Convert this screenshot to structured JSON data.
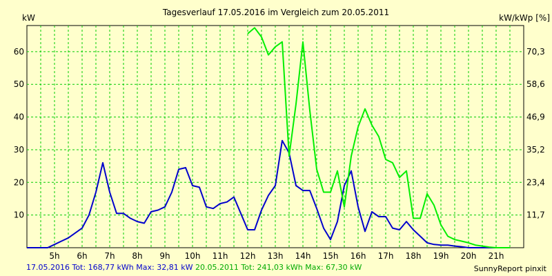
{
  "colors": {
    "background": "#ffffcc",
    "plot_background": "#ffffcc",
    "grid": "#00cc00",
    "series_2016": "#0000cc",
    "series_2011": "#00ee00"
  },
  "footer": {
    "series_2016": "17.05.2016 Tot: 168,77 kWh Max: 32,81 kW",
    "series_2011": "20.05.2011 Tot: 241,03 kWh Max: 67,30 kW",
    "brand": "SunnyReport pinxit"
  },
  "chart_data": {
    "type": "line",
    "title": "Tagesverlauf 17.05.2016 im Vergleich zum 20.05.2011",
    "ylabel": "kW",
    "ylabel_right": "kW/kWp [%]",
    "ylim": [
      0,
      68
    ],
    "yticks": [
      10,
      20,
      30,
      40,
      50,
      60
    ],
    "ylim_right": [
      0,
      79.7
    ],
    "yticks_right": [
      "11,7",
      "23,4",
      "35,2",
      "46,9",
      "58,6",
      "70,3"
    ],
    "xlim": [
      4.0,
      22.0
    ],
    "xticks": [
      {
        "x": 5,
        "label": "5h"
      },
      {
        "x": 6,
        "label": "6h"
      },
      {
        "x": 7,
        "label": "7h"
      },
      {
        "x": 8,
        "label": "8h"
      },
      {
        "x": 9,
        "label": "9h"
      },
      {
        "x": 10,
        "label": "10h"
      },
      {
        "x": 11,
        "label": "11h"
      },
      {
        "x": 12,
        "label": "12h"
      },
      {
        "x": 13,
        "label": "13h"
      },
      {
        "x": 14,
        "label": "14h"
      },
      {
        "x": 15,
        "label": "15h"
      },
      {
        "x": 16,
        "label": "16h"
      },
      {
        "x": 17,
        "label": "17h"
      },
      {
        "x": 18,
        "label": "18h"
      },
      {
        "x": 19,
        "label": "19h"
      },
      {
        "x": 20,
        "label": "20h"
      },
      {
        "x": 21,
        "label": "21h"
      }
    ],
    "grid": true,
    "series": [
      {
        "name": "17.05.2016",
        "color": "#0000cc",
        "points": [
          [
            4.0,
            0.0
          ],
          [
            4.5,
            0.0
          ],
          [
            4.75,
            0.0
          ],
          [
            5.0,
            1.0
          ],
          [
            5.25,
            2.0
          ],
          [
            5.5,
            3.0
          ],
          [
            5.75,
            4.5
          ],
          [
            6.0,
            6.0
          ],
          [
            6.25,
            10.0
          ],
          [
            6.5,
            17.0
          ],
          [
            6.75,
            26.0
          ],
          [
            7.0,
            17.0
          ],
          [
            7.25,
            10.5
          ],
          [
            7.5,
            10.5
          ],
          [
            7.75,
            9.0
          ],
          [
            8.0,
            8.0
          ],
          [
            8.25,
            7.5
          ],
          [
            8.5,
            11.0
          ],
          [
            8.75,
            11.5
          ],
          [
            9.0,
            12.5
          ],
          [
            9.25,
            17.0
          ],
          [
            9.5,
            24.0
          ],
          [
            9.75,
            24.5
          ],
          [
            10.0,
            19.0
          ],
          [
            10.25,
            18.5
          ],
          [
            10.5,
            12.5
          ],
          [
            10.75,
            12.0
          ],
          [
            11.0,
            13.5
          ],
          [
            11.25,
            14.0
          ],
          [
            11.5,
            15.5
          ],
          [
            11.75,
            10.5
          ],
          [
            12.0,
            5.5
          ],
          [
            12.25,
            5.5
          ],
          [
            12.5,
            11.5
          ],
          [
            12.75,
            16.0
          ],
          [
            13.0,
            19.0
          ],
          [
            13.25,
            32.8
          ],
          [
            13.5,
            29.0
          ],
          [
            13.75,
            19.0
          ],
          [
            14.0,
            17.5
          ],
          [
            14.25,
            17.5
          ],
          [
            14.5,
            12.0
          ],
          [
            14.75,
            6.0
          ],
          [
            15.0,
            2.5
          ],
          [
            15.25,
            8.0
          ],
          [
            15.5,
            19.0
          ],
          [
            15.75,
            23.5
          ],
          [
            16.0,
            12.5
          ],
          [
            16.25,
            5.0
          ],
          [
            16.5,
            11.0
          ],
          [
            16.75,
            9.5
          ],
          [
            17.0,
            9.5
          ],
          [
            17.25,
            6.0
          ],
          [
            17.5,
            5.5
          ],
          [
            17.75,
            8.0
          ],
          [
            18.0,
            5.5
          ],
          [
            18.25,
            3.5
          ],
          [
            18.5,
            1.5
          ],
          [
            18.75,
            1.0
          ],
          [
            19.0,
            0.8
          ],
          [
            19.25,
            0.8
          ],
          [
            19.5,
            0.5
          ],
          [
            19.75,
            0.3
          ],
          [
            20.0,
            0.0
          ],
          [
            20.5,
            0.0
          ],
          [
            21.0,
            0.0
          ]
        ]
      },
      {
        "name": "20.05.2011",
        "color": "#00ee00",
        "points": [
          [
            12.0,
            65.5
          ],
          [
            12.25,
            67.3
          ],
          [
            12.5,
            64.5
          ],
          [
            12.75,
            59.0
          ],
          [
            13.0,
            61.5
          ],
          [
            13.25,
            63.0
          ],
          [
            13.5,
            28.0
          ],
          [
            13.75,
            44.0
          ],
          [
            14.0,
            63.0
          ],
          [
            14.25,
            42.0
          ],
          [
            14.5,
            24.0
          ],
          [
            14.75,
            17.0
          ],
          [
            15.0,
            17.0
          ],
          [
            15.25,
            23.5
          ],
          [
            15.5,
            12.5
          ],
          [
            15.75,
            28.0
          ],
          [
            16.0,
            37.0
          ],
          [
            16.25,
            42.5
          ],
          [
            16.5,
            37.5
          ],
          [
            16.75,
            34.0
          ],
          [
            17.0,
            27.0
          ],
          [
            17.25,
            26.0
          ],
          [
            17.5,
            21.5
          ],
          [
            17.75,
            23.5
          ],
          [
            18.0,
            9.0
          ],
          [
            18.25,
            9.0
          ],
          [
            18.5,
            16.5
          ],
          [
            18.75,
            13.0
          ],
          [
            19.0,
            7.0
          ],
          [
            19.25,
            3.5
          ],
          [
            19.5,
            2.5
          ],
          [
            19.75,
            2.0
          ],
          [
            20.0,
            1.5
          ],
          [
            20.25,
            0.8
          ],
          [
            20.5,
            0.5
          ],
          [
            20.75,
            0.2
          ],
          [
            21.0,
            0.0
          ],
          [
            21.5,
            0.0
          ]
        ]
      }
    ]
  }
}
